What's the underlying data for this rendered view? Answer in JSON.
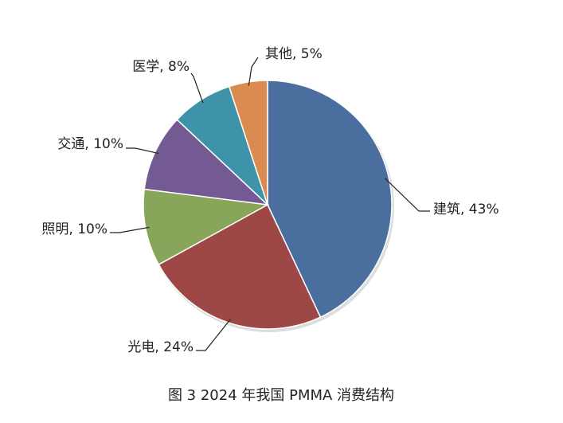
{
  "chart_data": {
    "type": "pie",
    "title": "图 3 2024 年我国 PMMA 消费结构",
    "values": [
      43,
      24,
      10,
      10,
      8,
      5
    ],
    "value_labels": [
      "建筑, 43%",
      "光电, 24%",
      "照明, 10%",
      "交通, 10%",
      "医学, 8%",
      "其他, 5%"
    ],
    "colors": [
      "#4a6f9e",
      "#9e4747",
      "#88a65a",
      "#735a93",
      "#3f93a8",
      "#db8b4f"
    ]
  }
}
